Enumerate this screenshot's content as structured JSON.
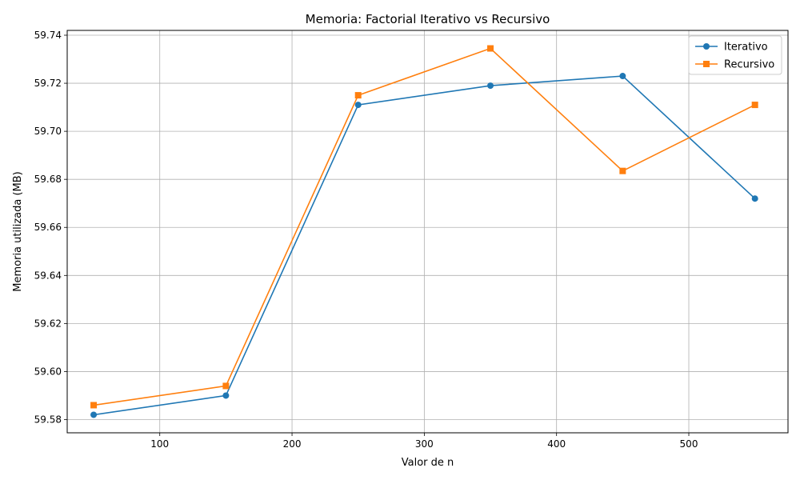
{
  "chart_data": {
    "type": "line",
    "title": "Memoria: Factorial Iterativo vs Recursivo",
    "xlabel": "Valor de n",
    "ylabel": "Memoria utilizada (MB)",
    "x": [
      50,
      150,
      250,
      350,
      450,
      550
    ],
    "xlim": [
      30,
      575
    ],
    "ylim": [
      59.5745,
      59.742
    ],
    "xticks": [
      100,
      200,
      300,
      400,
      500
    ],
    "yticks": [
      59.58,
      59.6,
      59.62,
      59.64,
      59.66,
      59.68,
      59.7,
      59.72,
      59.74
    ],
    "grid": true,
    "legend_position": "top-right",
    "series": [
      {
        "name": "Iterativo",
        "color": "#1f77b4",
        "marker": "circle",
        "values": [
          59.582,
          59.59,
          59.711,
          59.719,
          59.723,
          59.672
        ]
      },
      {
        "name": "Recursivo",
        "color": "#ff7f0e",
        "marker": "square",
        "values": [
          59.586,
          59.594,
          59.715,
          59.7345,
          59.6835,
          59.711
        ]
      }
    ]
  }
}
